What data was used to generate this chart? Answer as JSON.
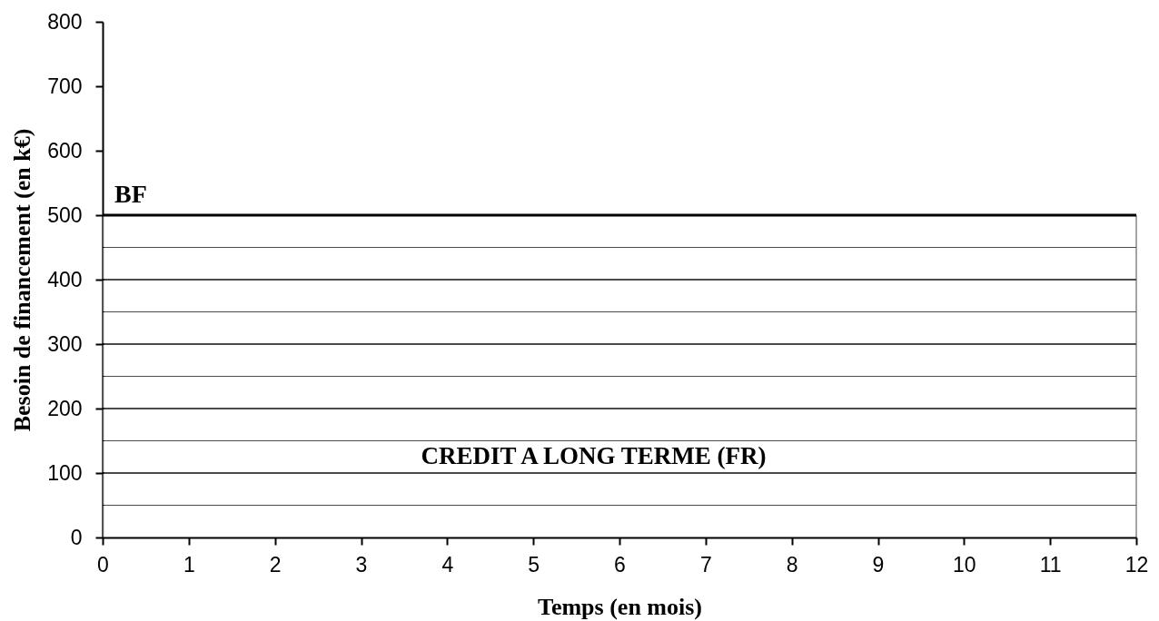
{
  "chart_data": {
    "type": "area",
    "xlabel": "Temps (en mois)",
    "ylabel": "Besoin de financement (en k€)",
    "x": [
      0,
      12
    ],
    "series": [
      {
        "name": "CREDIT A LONG TERME (FR)",
        "color": "#000000",
        "values": [
          500,
          500
        ]
      }
    ],
    "annotations": [
      {
        "text": "BF",
        "x": 0,
        "y": 500
      }
    ],
    "xlim": [
      0,
      12
    ],
    "ylim": [
      0,
      800
    ],
    "xticks": [
      0,
      1,
      2,
      3,
      4,
      5,
      6,
      7,
      8,
      9,
      10,
      11,
      12
    ],
    "yticks": [
      0,
      100,
      200,
      300,
      400,
      500,
      600,
      700,
      800
    ]
  }
}
